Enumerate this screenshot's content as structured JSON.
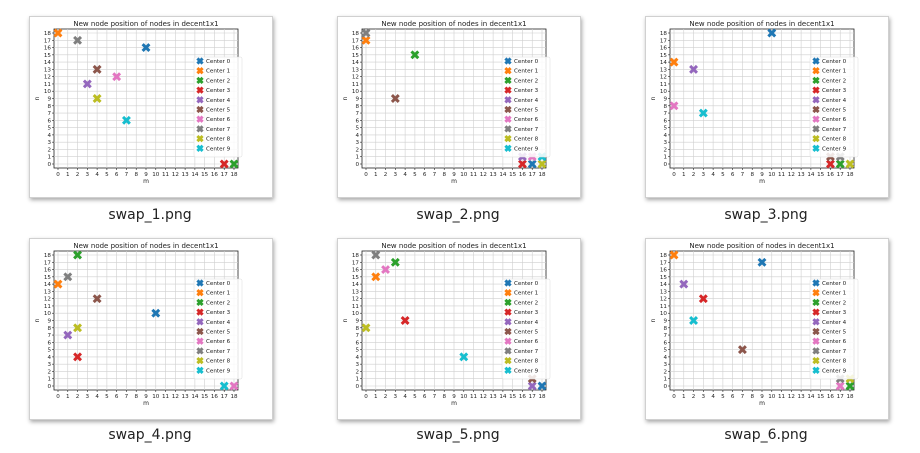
{
  "items": [
    {
      "filename": "swap_1.png"
    },
    {
      "filename": "swap_2.png"
    },
    {
      "filename": "swap_3.png"
    },
    {
      "filename": "swap_4.png"
    },
    {
      "filename": "swap_5.png"
    },
    {
      "filename": "swap_6.png"
    }
  ],
  "series_colors": [
    "#1f77b4",
    "#ff7f0e",
    "#2ca02c",
    "#d62728",
    "#9467bd",
    "#8c564b",
    "#e377c2",
    "#7f7f7f",
    "#bcbd22",
    "#17becf"
  ],
  "chart_data": [
    {
      "type": "scatter",
      "title": "New node position of nodes in decent1x1",
      "xlabel": "m",
      "ylabel": "n",
      "xlim": [
        0,
        18
      ],
      "ylim": [
        0,
        18
      ],
      "grid": true,
      "legend": "right",
      "series": [
        {
          "name": "Center 0",
          "x": [
            9
          ],
          "y": [
            16
          ]
        },
        {
          "name": "Center 1",
          "x": [
            0
          ],
          "y": [
            18
          ]
        },
        {
          "name": "Center 2",
          "x": [
            18
          ],
          "y": [
            0
          ]
        },
        {
          "name": "Center 3",
          "x": [
            17
          ],
          "y": [
            0
          ]
        },
        {
          "name": "Center 4",
          "x": [
            3
          ],
          "y": [
            11
          ]
        },
        {
          "name": "Center 5",
          "x": [
            4
          ],
          "y": [
            13
          ]
        },
        {
          "name": "Center 6",
          "x": [
            6
          ],
          "y": [
            12
          ]
        },
        {
          "name": "Center 7",
          "x": [
            2
          ],
          "y": [
            17
          ]
        },
        {
          "name": "Center 8",
          "x": [
            4
          ],
          "y": [
            9
          ]
        },
        {
          "name": "Center 9",
          "x": [
            7
          ],
          "y": [
            6
          ]
        }
      ]
    },
    {
      "type": "scatter",
      "title": "New node position of nodes in decent1x1",
      "xlabel": "m",
      "ylabel": "n",
      "xlim": [
        0,
        18
      ],
      "ylim": [
        0,
        18
      ],
      "grid": true,
      "legend": "right",
      "series": [
        {
          "name": "Center 0",
          "x": [
            17
          ],
          "y": [
            0
          ]
        },
        {
          "name": "Center 1",
          "x": [
            0
          ],
          "y": [
            17
          ]
        },
        {
          "name": "Center 2",
          "x": [
            5
          ],
          "y": [
            15
          ]
        },
        {
          "name": "Center 3",
          "x": [
            16
          ],
          "y": [
            0
          ]
        },
        {
          "name": "Center 4",
          "x": [
            16
          ],
          "y": [
            1
          ]
        },
        {
          "name": "Center 5",
          "x": [
            3
          ],
          "y": [
            9
          ]
        },
        {
          "name": "Center 6",
          "x": [
            17
          ],
          "y": [
            1
          ]
        },
        {
          "name": "Center 7",
          "x": [
            0
          ],
          "y": [
            18
          ]
        },
        {
          "name": "Center 8",
          "x": [
            18
          ],
          "y": [
            0
          ]
        },
        {
          "name": "Center 9",
          "x": [
            18
          ],
          "y": [
            1
          ]
        }
      ]
    },
    {
      "type": "scatter",
      "title": "New node position of nodes in decent1x1",
      "xlabel": "m",
      "ylabel": "n",
      "xlim": [
        0,
        18
      ],
      "ylim": [
        0,
        18
      ],
      "grid": true,
      "legend": "right",
      "series": [
        {
          "name": "Center 0",
          "x": [
            10
          ],
          "y": [
            18
          ]
        },
        {
          "name": "Center 1",
          "x": [
            0
          ],
          "y": [
            14
          ]
        },
        {
          "name": "Center 2",
          "x": [
            17
          ],
          "y": [
            0
          ]
        },
        {
          "name": "Center 3",
          "x": [
            16
          ],
          "y": [
            0
          ]
        },
        {
          "name": "Center 4",
          "x": [
            2
          ],
          "y": [
            13
          ]
        },
        {
          "name": "Center 5",
          "x": [
            16
          ],
          "y": [
            1
          ]
        },
        {
          "name": "Center 6",
          "x": [
            0
          ],
          "y": [
            8
          ]
        },
        {
          "name": "Center 7",
          "x": [
            17
          ],
          "y": [
            1
          ]
        },
        {
          "name": "Center 8",
          "x": [
            18
          ],
          "y": [
            0
          ]
        },
        {
          "name": "Center 9",
          "x": [
            3
          ],
          "y": [
            7
          ]
        }
      ]
    },
    {
      "type": "scatter",
      "title": "New node position of nodes in decent1x1",
      "xlabel": "m",
      "ylabel": "n",
      "xlim": [
        0,
        18
      ],
      "ylim": [
        0,
        18
      ],
      "grid": true,
      "legend": "right",
      "series": [
        {
          "name": "Center 0",
          "x": [
            10
          ],
          "y": [
            10
          ]
        },
        {
          "name": "Center 1",
          "x": [
            0
          ],
          "y": [
            14
          ]
        },
        {
          "name": "Center 2",
          "x": [
            2
          ],
          "y": [
            18
          ]
        },
        {
          "name": "Center 3",
          "x": [
            2
          ],
          "y": [
            4
          ]
        },
        {
          "name": "Center 4",
          "x": [
            1
          ],
          "y": [
            7
          ]
        },
        {
          "name": "Center 5",
          "x": [
            4
          ],
          "y": [
            12
          ]
        },
        {
          "name": "Center 6",
          "x": [
            18
          ],
          "y": [
            0
          ]
        },
        {
          "name": "Center 7",
          "x": [
            1
          ],
          "y": [
            15
          ]
        },
        {
          "name": "Center 8",
          "x": [
            2
          ],
          "y": [
            8
          ]
        },
        {
          "name": "Center 9",
          "x": [
            17
          ],
          "y": [
            0
          ]
        }
      ]
    },
    {
      "type": "scatter",
      "title": "New node position of nodes in decent1x1",
      "xlabel": "m",
      "ylabel": "n",
      "xlim": [
        0,
        18
      ],
      "ylim": [
        0,
        18
      ],
      "grid": true,
      "legend": "right",
      "series": [
        {
          "name": "Center 0",
          "x": [
            18
          ],
          "y": [
            0
          ]
        },
        {
          "name": "Center 1",
          "x": [
            1
          ],
          "y": [
            15
          ]
        },
        {
          "name": "Center 2",
          "x": [
            3
          ],
          "y": [
            17
          ]
        },
        {
          "name": "Center 3",
          "x": [
            4
          ],
          "y": [
            9
          ]
        },
        {
          "name": "Center 4",
          "x": [
            17
          ],
          "y": [
            0
          ]
        },
        {
          "name": "Center 5",
          "x": [
            17
          ],
          "y": [
            1
          ]
        },
        {
          "name": "Center 6",
          "x": [
            2
          ],
          "y": [
            16
          ]
        },
        {
          "name": "Center 7",
          "x": [
            1
          ],
          "y": [
            18
          ]
        },
        {
          "name": "Center 8",
          "x": [
            0
          ],
          "y": [
            8
          ]
        },
        {
          "name": "Center 9",
          "x": [
            10
          ],
          "y": [
            4
          ]
        }
      ]
    },
    {
      "type": "scatter",
      "title": "New node position of nodes in decent1x1",
      "xlabel": "m",
      "ylabel": "n",
      "xlim": [
        0,
        18
      ],
      "ylim": [
        0,
        18
      ],
      "grid": true,
      "legend": "right",
      "series": [
        {
          "name": "Center 0",
          "x": [
            9
          ],
          "y": [
            17
          ]
        },
        {
          "name": "Center 1",
          "x": [
            0
          ],
          "y": [
            18
          ]
        },
        {
          "name": "Center 2",
          "x": [
            18
          ],
          "y": [
            0
          ]
        },
        {
          "name": "Center 3",
          "x": [
            3
          ],
          "y": [
            12
          ]
        },
        {
          "name": "Center 4",
          "x": [
            1
          ],
          "y": [
            14
          ]
        },
        {
          "name": "Center 5",
          "x": [
            7
          ],
          "y": [
            5
          ]
        },
        {
          "name": "Center 6",
          "x": [
            17
          ],
          "y": [
            0
          ]
        },
        {
          "name": "Center 7",
          "x": [
            17
          ],
          "y": [
            1
          ]
        },
        {
          "name": "Center 8",
          "x": [
            18
          ],
          "y": [
            1
          ]
        },
        {
          "name": "Center 9",
          "x": [
            2
          ],
          "y": [
            9
          ]
        }
      ]
    }
  ]
}
